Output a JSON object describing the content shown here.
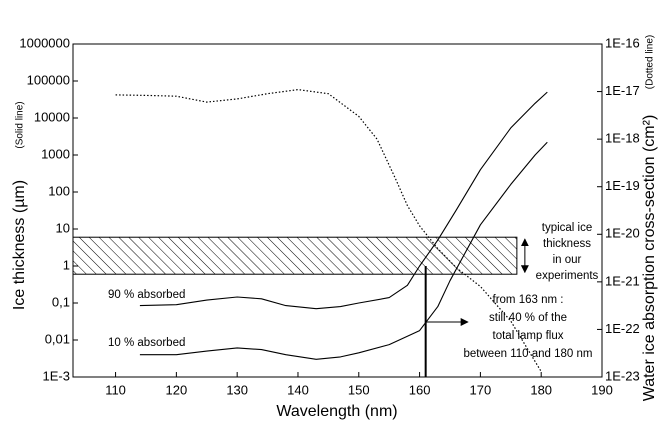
{
  "chart_data": {
    "type": "line",
    "x_label": "Wavelength (nm)",
    "y_label": "Ice thickness (µm)",
    "y_sublabel": "(Solid line)",
    "y2_label": "Water ice absorption cross-section (cm²)",
    "y2_sublabel": "(Dotted line)",
    "xlim": [
      103,
      190
    ],
    "xticks": [
      110,
      120,
      130,
      140,
      150,
      160,
      170,
      180,
      190
    ],
    "ylim": [
      0.001,
      1000000
    ],
    "yscale": "log",
    "yticks": [
      {
        "value": 0.001,
        "label": "1E-3"
      },
      {
        "value": 0.01,
        "label": "0,01"
      },
      {
        "value": 0.1,
        "label": "0,1"
      },
      1,
      10,
      100,
      1000,
      10000,
      100000,
      1000000
    ],
    "y2lim": [
      1e-23,
      1e-16
    ],
    "y2scale": "log",
    "y2ticks": [
      {
        "value": 1e-23,
        "label": "1E-23"
      },
      {
        "value": 1e-22,
        "label": "1E-22"
      },
      {
        "value": 1e-21,
        "label": "1E-21"
      },
      {
        "value": 1e-20,
        "label": "1E-20"
      },
      {
        "value": 1e-19,
        "label": "1E-19"
      },
      {
        "value": 1e-18,
        "label": "1E-18"
      },
      {
        "value": 1e-17,
        "label": "1E-17"
      },
      {
        "value": 1e-16,
        "label": "1E-16"
      }
    ],
    "series": [
      {
        "name": "90 % absorbed",
        "color": "#000000",
        "style": "solid",
        "x": [
          114,
          120,
          125,
          130,
          134,
          138,
          143,
          147,
          150,
          155,
          158,
          160,
          163,
          166,
          170,
          175,
          179,
          181
        ],
        "values": [
          0.085,
          0.09,
          0.12,
          0.145,
          0.13,
          0.085,
          0.07,
          0.08,
          0.1,
          0.14,
          0.3,
          1,
          5,
          32,
          400,
          5400,
          25000,
          50000
        ]
      },
      {
        "name": "10 % absorbed",
        "color": "#000000",
        "style": "solid",
        "x": [
          114,
          120,
          125,
          130,
          134,
          138,
          143,
          147,
          150,
          155,
          160,
          163,
          165,
          170,
          175,
          179,
          181
        ],
        "values": [
          0.004,
          0.004,
          0.005,
          0.0061,
          0.0055,
          0.004,
          0.003,
          0.0035,
          0.0045,
          0.0075,
          0.018,
          0.08,
          0.4,
          13,
          160,
          1000,
          2200
        ]
      },
      {
        "axis": "y2",
        "color": "#000000",
        "style": "dotted",
        "x": [
          110,
          115,
          120,
          125,
          130,
          135,
          140,
          145,
          150,
          153,
          156,
          158,
          160,
          163,
          166,
          170,
          175,
          180
        ],
        "values": [
          8.5e-18,
          8.3e-18,
          8e-18,
          6e-18,
          7e-18,
          9e-18,
          1.1e-17,
          9e-18,
          3e-18,
          1e-18,
          1.5e-19,
          4e-20,
          1.5e-20,
          5e-21,
          2e-21,
          8e-22,
          1.5e-22,
          1.3e-23
        ]
      }
    ],
    "hatched_region": {
      "x": [
        103,
        176
      ],
      "y": [
        0.6,
        6
      ]
    },
    "marker_x": 161,
    "annotations": {
      "typical": [
        "typical ice",
        "thickness",
        "in our",
        "experiments"
      ],
      "flux": [
        "from 163 nm :",
        "still 40 % of the",
        "total lamp flux",
        "between 110 and 180 nm"
      ]
    }
  }
}
